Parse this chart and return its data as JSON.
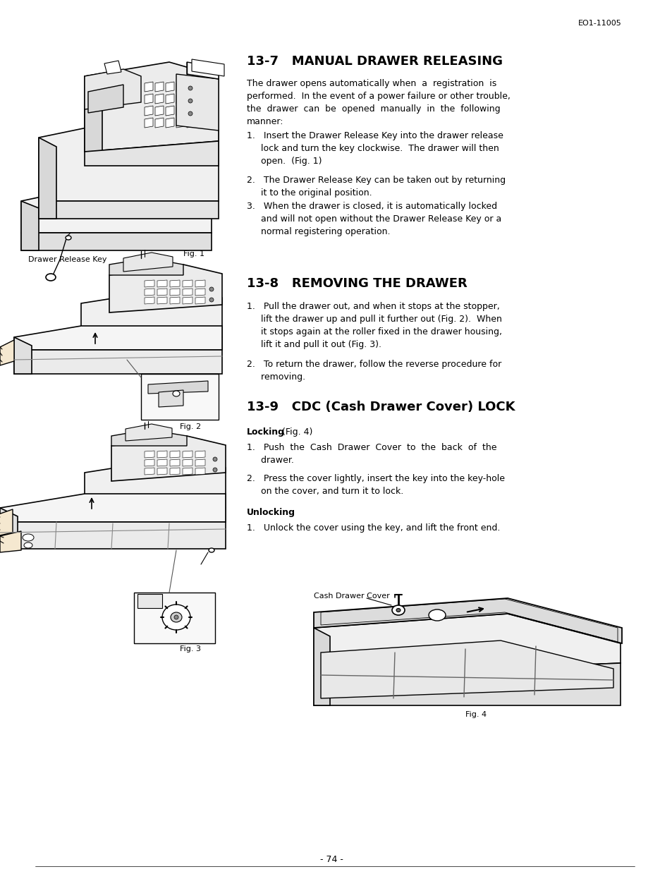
{
  "page_id": "EO1-11005",
  "page_number": "- 74 -",
  "background_color": "#ffffff",
  "section1_title": "13-7   MANUAL DRAWER RELEASING",
  "section2_title": "13-8   REMOVING THE DRAWER",
  "section3_title": "13-9   CDC (Cash Drawer Cover) LOCK",
  "fig1_caption": "Drawer Release Key",
  "fig1_label": "Fig. 1",
  "fig2_label": "Fig. 2",
  "fig3_label": "Fig. 3",
  "fig4_caption": "Cash Drawer Cover",
  "fig4_label": "Fig. 4",
  "body1_0": "The drawer opens automatically when  a  registration  is\nperformed.  In the event of a power failure or other trouble,\nthe  drawer  can  be  opened  manually  in  the  following\nmanner:",
  "body1_1": "1.   Insert the Drawer Release Key into the drawer release\n     lock and turn the key clockwise.  The drawer will then\n     open.  (Fig. 1)",
  "body1_2": "2.   The Drawer Release Key can be taken out by returning\n     it to the original position.",
  "body1_3": "3.   When the drawer is closed, it is automatically locked\n     and will not open without the Drawer Release Key or a\n     normal registering operation.",
  "body2_1": "1.   Pull the drawer out, and when it stops at the stopper,\n     lift the drawer up and pull it further out (Fig. 2).  When\n     it stops again at the roller fixed in the drawer housing,\n     lift it and pull it out (Fig. 3).",
  "body2_2": "2.   To return the drawer, follow the reverse procedure for\n     removing.",
  "body3_lock1": "1.   Push  the  Cash  Drawer  Cover  to  the  back  of  the\n     drawer.",
  "body3_lock2": "2.   Press the cover lightly, insert the key into the key-hole\n     on the cover, and turn it to lock.",
  "body3_unlock1": "1.   Unlock the cover using the key, and lift the front end."
}
